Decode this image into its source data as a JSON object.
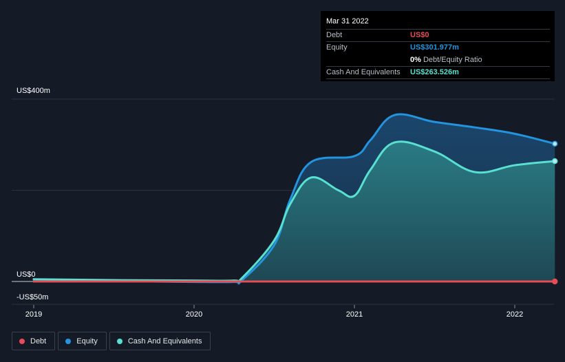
{
  "chart_data": {
    "type": "area",
    "title": "",
    "xlabel": "",
    "ylabel": "",
    "y_unit_prefix": "US$",
    "ylim": [
      -50,
      400
    ],
    "y_ticks": [
      {
        "value": 400,
        "label": "US$400m"
      },
      {
        "value": 0,
        "label": "US$0"
      },
      {
        "value": -50,
        "label": "-US$50m"
      }
    ],
    "x_range": [
      2018.87,
      2022.25
    ],
    "x_ticks": [
      {
        "value": 2019,
        "label": "2019"
      },
      {
        "value": 2020,
        "label": "2020"
      },
      {
        "value": 2021,
        "label": "2021"
      },
      {
        "value": 2022,
        "label": "2022"
      }
    ],
    "gridlines": [
      400,
      200,
      -50
    ],
    "series": [
      {
        "name": "Equity",
        "color": "#2394df",
        "fill": true,
        "points": [
          [
            2019.0,
            4
          ],
          [
            2019.5,
            1
          ],
          [
            2020.0,
            -1
          ],
          [
            2020.25,
            -1
          ],
          [
            2020.3,
            3
          ],
          [
            2020.5,
            80
          ],
          [
            2020.6,
            180
          ],
          [
            2020.73,
            262
          ],
          [
            2021.0,
            275
          ],
          [
            2021.1,
            310
          ],
          [
            2021.25,
            365
          ],
          [
            2021.5,
            350
          ],
          [
            2021.75,
            338
          ],
          [
            2022.0,
            324
          ],
          [
            2022.25,
            302
          ]
        ]
      },
      {
        "name": "Cash And Equivalents",
        "color": "#58e0d0",
        "fill": true,
        "points": [
          [
            2019.0,
            5
          ],
          [
            2019.5,
            3
          ],
          [
            2020.0,
            2
          ],
          [
            2020.25,
            2
          ],
          [
            2020.3,
            8
          ],
          [
            2020.5,
            90
          ],
          [
            2020.6,
            170
          ],
          [
            2020.73,
            228
          ],
          [
            2020.9,
            200
          ],
          [
            2021.0,
            188
          ],
          [
            2021.1,
            245
          ],
          [
            2021.25,
            305
          ],
          [
            2021.5,
            285
          ],
          [
            2021.75,
            240
          ],
          [
            2022.0,
            255
          ],
          [
            2022.25,
            264
          ]
        ]
      },
      {
        "name": "Debt",
        "color": "#e64c56",
        "fill": false,
        "points": [
          [
            2019.0,
            0
          ],
          [
            2020.3,
            0
          ],
          [
            2022.25,
            0
          ]
        ]
      }
    ],
    "legend": {
      "position": "bottom-left",
      "entries": [
        {
          "name": "Debt",
          "color": "#e64c56"
        },
        {
          "name": "Equity",
          "color": "#2394df"
        },
        {
          "name": "Cash And Equivalents",
          "color": "#58e0d0"
        }
      ]
    }
  },
  "tooltip": {
    "date": "Mar 31 2022",
    "rows": [
      {
        "label": "Debt",
        "value": "US$0",
        "color": "#e64c56"
      },
      {
        "label": "Equity",
        "value": "US$301.977m",
        "color": "#2394df"
      },
      {
        "label": "",
        "value": "0%",
        "suffix": "Debt/Equity Ratio",
        "color": "#ffffff"
      },
      {
        "label": "Cash And Equivalents",
        "value": "US$263.526m",
        "color": "#58e0d0"
      }
    ]
  }
}
